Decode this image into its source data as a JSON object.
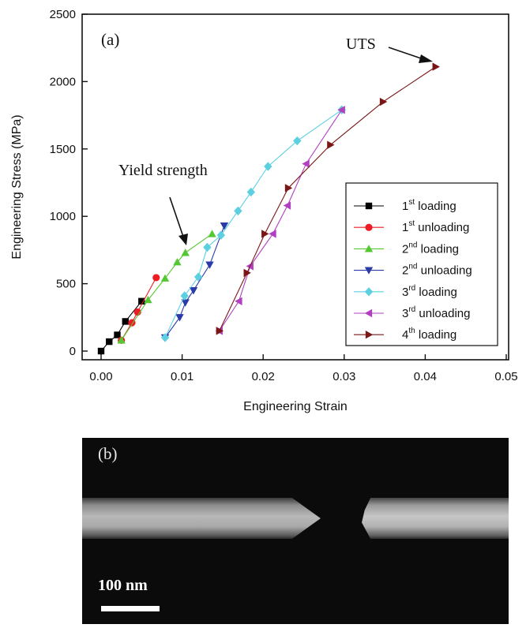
{
  "chart_data": {
    "type": "line",
    "panel_label": "(a)",
    "xlabel": "Engineering Strain",
    "ylabel": "Engineering Stress (MPa)",
    "xlim": [
      0.0,
      0.05
    ],
    "ylim": [
      0,
      2500
    ],
    "x_ticks": [
      "0.00",
      "0.01",
      "0.02",
      "0.03",
      "0.04",
      "0.05"
    ],
    "y_ticks": [
      "0",
      "500",
      "1000",
      "1500",
      "2000",
      "2500"
    ],
    "grid": false,
    "legend_position": "lower-right",
    "series": [
      {
        "name_prefix": "1",
        "name_sup": "st",
        "name_suffix": " loading",
        "marker": "square",
        "color": "#000000",
        "x": [
          0.0,
          0.001,
          0.002,
          0.003,
          0.005
        ],
        "y": [
          0,
          70,
          120,
          220,
          370
        ]
      },
      {
        "name_prefix": "1",
        "name_sup": "st",
        "name_suffix": " unloading",
        "marker": "circle",
        "color": "#ee1c24",
        "x": [
          0.0068,
          0.0045,
          0.0038,
          0.0025
        ],
        "y": [
          545,
          290,
          210,
          80
        ]
      },
      {
        "name_prefix": "2",
        "name_sup": "nd",
        "name_suffix": " loading",
        "marker": "triangle-up",
        "color": "#54c832",
        "x": [
          0.0025,
          0.0058,
          0.0079,
          0.0094,
          0.0104,
          0.0137
        ],
        "y": [
          80,
          380,
          540,
          660,
          730,
          870
        ]
      },
      {
        "name_prefix": "2",
        "name_sup": "nd",
        "name_suffix": " unloading",
        "marker": "triangle-down",
        "color": "#2a3aa8",
        "x": [
          0.0152,
          0.0134,
          0.0114,
          0.0104,
          0.0097,
          0.0079
        ],
        "y": [
          930,
          640,
          450,
          360,
          250,
          100
        ]
      },
      {
        "name_prefix": "3",
        "name_sup": "rd",
        "name_suffix": " loading",
        "marker": "diamond",
        "color": "#5cd0e0",
        "x": [
          0.0079,
          0.0103,
          0.012,
          0.0131,
          0.0148,
          0.0169,
          0.0185,
          0.0206,
          0.0242,
          0.0297
        ],
        "y": [
          100,
          410,
          550,
          770,
          860,
          1040,
          1180,
          1370,
          1560,
          1790
        ]
      },
      {
        "name_prefix": "3",
        "name_sup": "rd",
        "name_suffix": " unloading",
        "marker": "triangle-left",
        "color": "#b040c0",
        "x": [
          0.0297,
          0.0253,
          0.023,
          0.0212,
          0.0184,
          0.017,
          0.0146
        ],
        "y": [
          1790,
          1390,
          1080,
          870,
          630,
          370,
          150
        ]
      },
      {
        "name_prefix": "4",
        "name_sup": "th",
        "name_suffix": " loading",
        "marker": "triangle-right",
        "color": "#7a1616",
        "x": [
          0.0146,
          0.018,
          0.0202,
          0.0231,
          0.0283,
          0.0348,
          0.0413
        ],
        "y": [
          150,
          580,
          870,
          1210,
          1530,
          1850,
          2110
        ]
      }
    ],
    "annotations": [
      {
        "text": "Yield strength",
        "x": 0.0105,
        "y": 810
      },
      {
        "text": "UTS",
        "x": 0.0418,
        "y": 2120
      }
    ]
  },
  "panel_b": {
    "label": "(b)",
    "scale_bar_label": "100 nm"
  }
}
